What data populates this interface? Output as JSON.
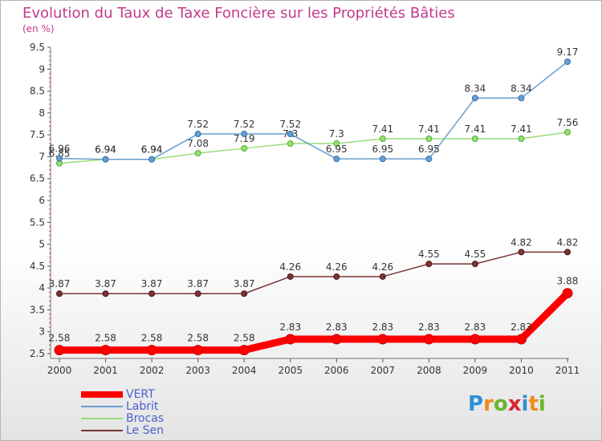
{
  "header": {
    "title": "Evolution du Taux de Taxe Foncière sur les Propriétés Bâties",
    "subtitle": "(en %)"
  },
  "logo": {
    "text": "Proxiti",
    "letters": [
      {
        "ch": "P",
        "color": "#2e8fd8"
      },
      {
        "ch": "r",
        "color": "#f08a1c"
      },
      {
        "ch": "o",
        "color": "#6ab42d"
      },
      {
        "ch": "x",
        "color": "#d8262e"
      },
      {
        "ch": "i",
        "color": "#2e8fd8"
      },
      {
        "ch": "t",
        "color": "#f08a1c"
      },
      {
        "ch": "i",
        "color": "#6ab42d"
      }
    ]
  },
  "chart_data": {
    "type": "line",
    "title": "Evolution du Taux de Taxe Foncière sur les Propriétés Bâties",
    "ylabel": "(en %)",
    "xlabel": "",
    "x": [
      "2000",
      "2001",
      "2002",
      "2003",
      "2004",
      "2005",
      "2006",
      "2007",
      "2008",
      "2009",
      "2010",
      "2011"
    ],
    "ylim": [
      2.5,
      9.5
    ],
    "yticks": [
      "2.5",
      "3",
      "3.5",
      "4",
      "4.5",
      "5",
      "5.5",
      "6",
      "6.5",
      "7",
      "7.5",
      "8",
      "8.5",
      "9",
      "9.5"
    ],
    "grid": false,
    "legend": "bottom-left",
    "series": [
      {
        "name": "VERT",
        "color": "#ff0000",
        "values": [
          2.58,
          2.58,
          2.58,
          2.58,
          2.58,
          2.83,
          2.83,
          2.83,
          2.83,
          2.83,
          2.83,
          3.88
        ],
        "labels": [
          "2.58",
          "2.58",
          "2.58",
          "2.58",
          "2.58",
          "2.83",
          "2.83",
          "2.83",
          "2.83",
          "2.83",
          "2.83",
          "3.88"
        ]
      },
      {
        "name": "Labrit",
        "color": "#6a9ecf",
        "values": [
          6.96,
          6.94,
          6.94,
          7.52,
          7.52,
          7.52,
          6.95,
          6.95,
          6.95,
          8.34,
          8.34,
          9.17
        ],
        "labels": [
          "6.96",
          "6.94",
          "6.94",
          "7.52",
          "7.52",
          "7.52",
          "6.95",
          "6.95",
          "6.95",
          "8.34",
          "8.34",
          "9.17"
        ]
      },
      {
        "name": "Brocas",
        "color": "#99dd77",
        "values": [
          6.85,
          6.94,
          6.94,
          7.08,
          7.19,
          7.3,
          7.3,
          7.41,
          7.41,
          7.41,
          7.41,
          7.56
        ],
        "labels": [
          "6.85",
          "6.94",
          "6.94",
          "7.08",
          "7.19",
          "7.3",
          "7.3",
          "7.41",
          "7.41",
          "7.41",
          "7.41",
          "7.56"
        ]
      },
      {
        "name": "Le Sen",
        "color": "#7a3535",
        "values": [
          3.87,
          3.87,
          3.87,
          3.87,
          3.87,
          4.26,
          4.26,
          4.26,
          4.55,
          4.55,
          4.82,
          4.82
        ],
        "labels": [
          "3.87",
          "3.87",
          "3.87",
          "3.87",
          "3.87",
          "4.26",
          "4.26",
          "4.26",
          "4.55",
          "4.55",
          "4.82",
          "4.82"
        ]
      }
    ]
  }
}
